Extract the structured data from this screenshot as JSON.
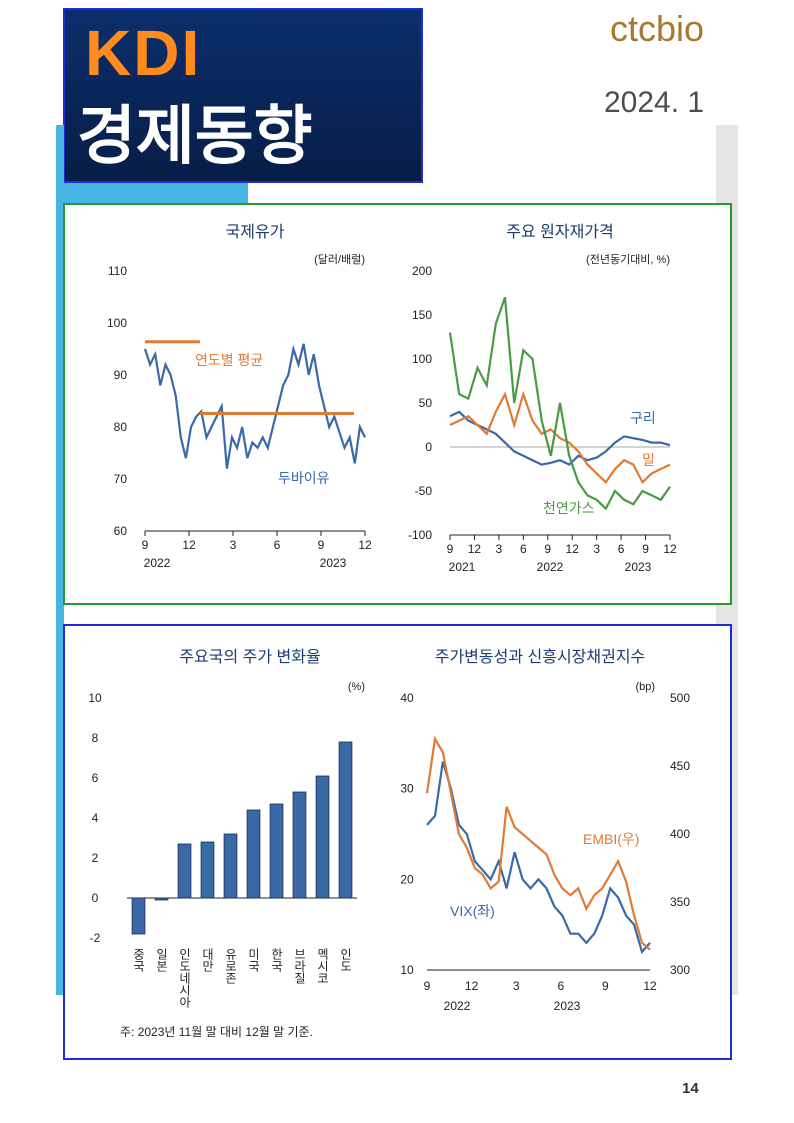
{
  "header": {
    "brand": "KDI",
    "title": "경제동향",
    "logo": "ctcbio",
    "date": "2024. 1"
  },
  "page_number": "14",
  "chart_data": [
    {
      "id": "oil",
      "type": "line",
      "title": "국제유가",
      "unit": "(달러/배럴)",
      "ylim": [
        60,
        110
      ],
      "yticks": [
        "110",
        "100",
        "90",
        "80",
        "70",
        "60"
      ],
      "xticks": [
        "9",
        "12",
        "3",
        "6",
        "9",
        "12"
      ],
      "xyears": [
        "2022",
        "2023"
      ],
      "series": [
        {
          "name": "두바이유",
          "color": "#3a69a8",
          "values": [
            95,
            92,
            94,
            88,
            92,
            90,
            86,
            78,
            74,
            80,
            82,
            83,
            78,
            80,
            82,
            84,
            72,
            78,
            76,
            80,
            74,
            77,
            76,
            78,
            76,
            80,
            84,
            88,
            90,
            95,
            92,
            96,
            90,
            94,
            88,
            84,
            80,
            82,
            79,
            76,
            78,
            73,
            80,
            78
          ]
        },
        {
          "name": "연도별 평균",
          "color": "#e07a35",
          "segments": [
            {
              "x": [
                0,
                0.25
              ],
              "y": 96.4
            },
            {
              "x": [
                0.25,
                0.95
              ],
              "y": 82.6
            }
          ]
        }
      ],
      "annotations": {
        "avg": "연도별 평균",
        "dubai": "두바이유"
      }
    },
    {
      "id": "commodity",
      "type": "line",
      "title": "주요 원자재가격",
      "unit": "(전년동기대비, %)",
      "ylim": [
        -100,
        200
      ],
      "yticks": [
        "200",
        "150",
        "100",
        "50",
        "0",
        "-50",
        "-100"
      ],
      "xticks": [
        "9",
        "12",
        "3",
        "6",
        "9",
        "12",
        "3",
        "6",
        "9",
        "12"
      ],
      "xyears": [
        "2021",
        "2022",
        "2023"
      ],
      "series": [
        {
          "name": "구리",
          "color": "#3a69a8",
          "values": [
            35,
            40,
            30,
            25,
            20,
            15,
            5,
            -5,
            -10,
            -15,
            -20,
            -18,
            -15,
            -20,
            -10,
            -15,
            -12,
            -5,
            5,
            12,
            10,
            8,
            5,
            5,
            2
          ]
        },
        {
          "name": "밀",
          "color": "#e07a35",
          "values": [
            25,
            30,
            35,
            25,
            15,
            40,
            60,
            25,
            60,
            30,
            15,
            20,
            10,
            5,
            -5,
            -20,
            -30,
            -40,
            -25,
            -15,
            -20,
            -40,
            -30,
            -25,
            -20
          ]
        },
        {
          "name": "천연가스",
          "color": "#4a9a44",
          "values": [
            130,
            60,
            55,
            90,
            70,
            140,
            170,
            50,
            110,
            100,
            30,
            -10,
            50,
            -10,
            -40,
            -55,
            -60,
            -70,
            -50,
            -60,
            -65,
            -50,
            -55,
            -60,
            -45
          ]
        }
      ],
      "labels": {
        "copper": "구리",
        "wheat": "밀",
        "gas": "천연가스"
      }
    },
    {
      "id": "stocks",
      "type": "bar",
      "title": "주요국의 주가 변화율",
      "unit": "(%)",
      "ylim": [
        -2,
        10
      ],
      "yticks": [
        "10",
        "8",
        "6",
        "4",
        "2",
        "0",
        "-2"
      ],
      "categories": [
        "중국",
        "일본",
        "인도네시아",
        "대만",
        "유로존",
        "미국",
        "한국",
        "브라질",
        "멕시코",
        "인도"
      ],
      "values": [
        -1.8,
        -0.1,
        2.7,
        2.8,
        3.2,
        4.4,
        4.7,
        5.3,
        6.1,
        7.8
      ],
      "color": "#3a69a8",
      "note": "주: 2023년 11월 말 대비 12월 말 기준."
    },
    {
      "id": "vix",
      "type": "line",
      "title": "주가변동성과 신흥시장채권지수",
      "unit": "(bp)",
      "ylim": [
        10,
        40
      ],
      "y2lim": [
        300,
        500
      ],
      "yticks": [
        "40",
        "30",
        "20",
        "10"
      ],
      "y2ticks": [
        "500",
        "450",
        "400",
        "350",
        "300"
      ],
      "xticks": [
        "9",
        "12",
        "3",
        "6",
        "9",
        "12"
      ],
      "xyears": [
        "2022",
        "2023"
      ],
      "series": [
        {
          "name": "VIX(좌)",
          "color": "#3a69a8",
          "values": [
            26,
            27,
            33,
            30,
            26,
            25,
            22,
            21,
            20,
            22,
            19,
            23,
            20,
            19,
            20,
            19,
            17,
            16,
            14,
            14,
            13,
            14,
            16,
            19,
            18,
            16,
            15,
            12,
            13
          ]
        },
        {
          "name": "EMBI(우)",
          "color": "#e07a35",
          "values": [
            430,
            470,
            460,
            430,
            400,
            390,
            375,
            370,
            360,
            365,
            420,
            405,
            400,
            395,
            390,
            385,
            370,
            360,
            355,
            360,
            345,
            355,
            360,
            370,
            380,
            365,
            340,
            320,
            315
          ]
        }
      ],
      "labels": {
        "vix": "VIX(좌)",
        "embi": "EMBI(우)"
      }
    }
  ]
}
